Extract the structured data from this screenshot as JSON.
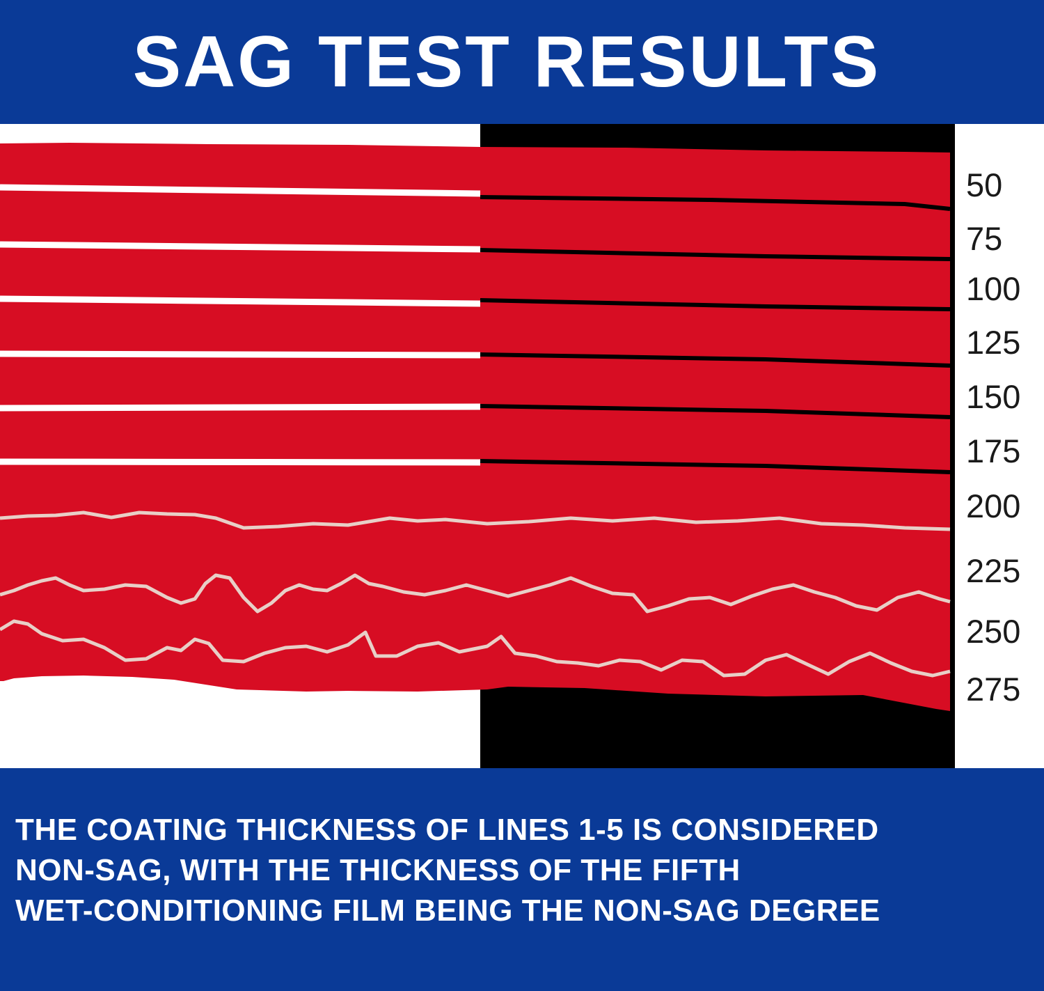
{
  "header": {
    "title": "SAG TEST RESULTS"
  },
  "scale": {
    "labels": [
      "50",
      "75",
      "100",
      "125",
      "150",
      "175",
      "200",
      "225",
      "250",
      "275"
    ]
  },
  "footer": {
    "lines": [
      "THE COATING THICKNESS OF LINES 1-5 IS CONSIDERED",
      "NON-SAG, WITH THE THICKNESS OF THE FIFTH",
      "WET-CONDITIONING FILM BEING THE NON-SAG DEGREE"
    ]
  },
  "colors": {
    "banner": "#0a3a97",
    "coating": "#d70d23",
    "substrate_dark": "#000000",
    "substrate_light": "#ffffff",
    "sag_line": "#e8cfc7"
  }
}
